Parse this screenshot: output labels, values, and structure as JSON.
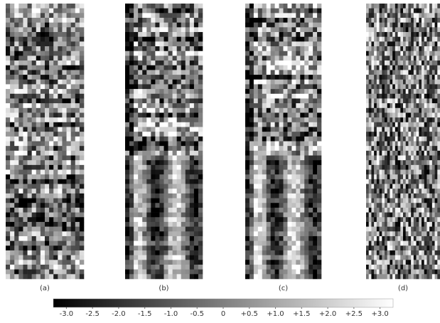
{
  "panels": [
    {
      "label": "(a)"
    },
    {
      "label": "(b)"
    },
    {
      "label": "(c)"
    },
    {
      "label": "(d)"
    }
  ],
  "colorbar": {
    "lim": [
      -3.25,
      3.25
    ],
    "ticks": [
      {
        "value": -3,
        "label": "-3.0"
      },
      {
        "value": -2.5,
        "label": "-2.5"
      },
      {
        "value": -2,
        "label": "-2.0"
      },
      {
        "value": -1.5,
        "label": "-1.5"
      },
      {
        "value": -1,
        "label": "-1.0"
      },
      {
        "value": -0.5,
        "label": "-0.5"
      },
      0,
      {
        "value": 0.5,
        "label": "+0.5"
      },
      {
        "value": 1,
        "label": "+1.0"
      },
      {
        "value": 1.5,
        "label": "+1.5"
      },
      {
        "value": 2,
        "label": "+2.0"
      },
      {
        "value": 2.5,
        "label": "+2.5"
      },
      {
        "value": 3,
        "label": "+3.0"
      }
    ]
  }
}
